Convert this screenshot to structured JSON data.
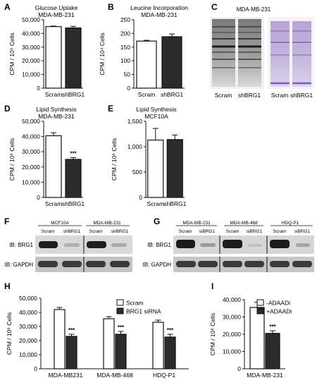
{
  "figure": {
    "panel_letters": [
      "A",
      "B",
      "C",
      "D",
      "E",
      "F",
      "G",
      "H",
      "I"
    ],
    "panels": {
      "A": {
        "chart_data": {
          "type": "bar",
          "title": "Glucose Uptake",
          "subtitle": "MDA-MB-231",
          "categories": [
            "Scram",
            "shBRG1"
          ],
          "values": [
            45000,
            44000
          ],
          "errors": [
            400,
            1200
          ],
          "significance": [
            "",
            ""
          ],
          "bar_colors": [
            "#ffffff",
            "#2b2b2b"
          ],
          "ylabel": "CPM / 10⁶ Cells",
          "ylim": [
            0,
            50000
          ],
          "yticks": [
            "0",
            "10,000",
            "20,000",
            "30,000",
            "40,000",
            "50,000"
          ],
          "grid": false
        }
      },
      "B": {
        "chart_data": {
          "type": "bar",
          "title": "Leucine Incorporation",
          "subtitle": "MDA-MB-231",
          "categories": [
            "Scram",
            "shBRG1"
          ],
          "values": [
            172,
            188
          ],
          "errors": [
            3,
            10
          ],
          "significance": [
            "",
            ""
          ],
          "bar_colors": [
            "#ffffff",
            "#2b2b2b"
          ],
          "ylabel": "CPM / 10⁴ Cells",
          "ylim": [
            0,
            250
          ],
          "yticks": [
            "0",
            "50",
            "100",
            "150",
            "200",
            "250"
          ],
          "grid": false
        }
      },
      "C": {
        "title": "MDA-MB-231",
        "lane_labels": [
          "Scram",
          "shBRG1",
          "Scram",
          "shBRG1"
        ]
      },
      "D": {
        "chart_data": {
          "type": "bar",
          "title": "Lipid Synthesis",
          "subtitle": "MDA-MB-231",
          "categories": [
            "Scram",
            "shBRG1"
          ],
          "values": [
            40500,
            25000
          ],
          "errors": [
            2000,
            1200
          ],
          "significance": [
            "",
            "***"
          ],
          "bar_colors": [
            "#ffffff",
            "#2b2b2b"
          ],
          "ylabel": "CPM / 10⁶ Cells",
          "ylim": [
            0,
            50000
          ],
          "yticks": [
            "0",
            "10,000",
            "20,000",
            "30,000",
            "40,000",
            "50,000"
          ],
          "grid": false
        }
      },
      "E": {
        "chart_data": {
          "type": "bar",
          "title": "Lipid Synthesis",
          "subtitle": "MCF10A",
          "categories": [
            "Scram",
            "shBRG1"
          ],
          "values": [
            1130,
            1140
          ],
          "errors": [
            230,
            90
          ],
          "significance": [
            "",
            ""
          ],
          "bar_colors": [
            "#ffffff",
            "#2b2b2b"
          ],
          "ylabel": "CPM / 10⁶ Cells",
          "ylim": [
            0,
            1500
          ],
          "yticks": [
            "0",
            "500",
            "1,000",
            "1,500"
          ],
          "grid": false
        }
      },
      "F": {
        "groups": [
          "MCF10A",
          "MDA-MB-231"
        ],
        "lanes": [
          "Scram",
          "shBRG1",
          "Scram",
          "shBRG1"
        ],
        "rows": [
          "IB: BRG1",
          "IB: GAPDH"
        ]
      },
      "G": {
        "groups": [
          "MDA-MB-231",
          "MDA-MB-468",
          "HDQ-P1"
        ],
        "lanes": [
          "Scram",
          "siBRG1",
          "Scram",
          "siBRG1",
          "Scram",
          "siBRG1"
        ],
        "rows": [
          "IB: BRG1",
          "IB: GAPDH"
        ]
      },
      "H": {
        "chart_data": {
          "type": "bar",
          "categories": [
            "MDA-MB231",
            "MDA-MB-468",
            "HDQ-P1"
          ],
          "series": [
            {
              "name": "Scram",
              "values": [
                42000,
                35500,
                33000
              ],
              "errors": [
                1500,
                1500,
                1500
              ],
              "color": "#ffffff",
              "significance": [
                "",
                "",
                ""
              ]
            },
            {
              "name": "BRG1 siRNA",
              "values": [
                23000,
                24500,
                22500
              ],
              "errors": [
                1500,
                2000,
                2000
              ],
              "color": "#2b2b2b",
              "significance": [
                "***",
                "***",
                "***"
              ]
            }
          ],
          "ylabel": "CPM / 10⁶ Cells",
          "ylim": [
            0,
            50000
          ],
          "yticks": [
            "0",
            "10,000",
            "20,000",
            "30,000",
            "40,000",
            "50,000"
          ],
          "legend": "top-right",
          "grid": false
        }
      },
      "I": {
        "chart_data": {
          "type": "bar",
          "categories": [
            "MDA-MB-231"
          ],
          "series": [
            {
              "name": "-ADAADi",
              "values": [
                35500
              ],
              "errors": [
                3000
              ],
              "color": "#ffffff",
              "significance": [
                ""
              ]
            },
            {
              "name": "+ADAADi",
              "values": [
                20500
              ],
              "errors": [
                1500
              ],
              "color": "#2b2b2b",
              "significance": [
                "***"
              ]
            }
          ],
          "ylabel": "CPM / 10⁶ Cells",
          "ylim": [
            0,
            40000
          ],
          "yticks": [
            "0",
            "10,000",
            "20,000",
            "30,000",
            "40,000"
          ],
          "legend": "top-right",
          "grid": false
        }
      }
    }
  }
}
